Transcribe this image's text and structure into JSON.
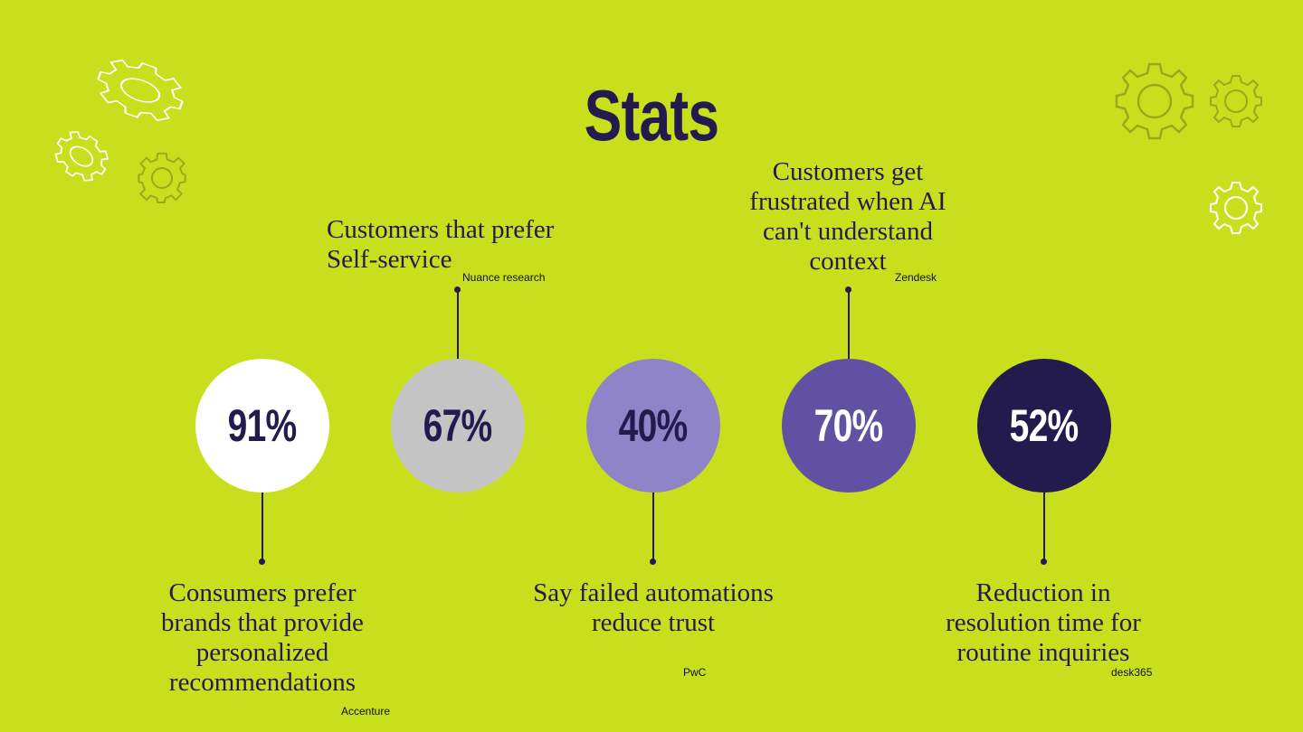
{
  "title": "Stats",
  "colors": {
    "background": "#c8df1e",
    "text": "#231a4e",
    "gear_light": "#ffffff",
    "gear_olive": "#9aa91a",
    "circles": [
      "#ffffff",
      "#c4c4c4",
      "#8f84c8",
      "#6151a2",
      "#231a4e"
    ]
  },
  "stats": [
    {
      "value": "91%",
      "label": "Consumers prefer brands that provide personalized recommendations",
      "source": "Accenture",
      "position": "below"
    },
    {
      "value": "67%",
      "label": "Customers that prefer Self-service",
      "source": "Nuance research",
      "position": "above"
    },
    {
      "value": "40%",
      "label": "Say failed automations reduce trust",
      "source": "PwC",
      "position": "below"
    },
    {
      "value": "70%",
      "label": "Customers get frustrated when AI can't understand context",
      "source": "Zendesk",
      "position": "above"
    },
    {
      "value": "52%",
      "label": "Reduction in resolution time for routine inquiries",
      "source": "desk365",
      "position": "below"
    }
  ],
  "decorations": [
    "gear-icon",
    "gear-icon",
    "gear-icon",
    "gear-icon",
    "gear-icon",
    "gear-icon",
    "gear-icon"
  ]
}
